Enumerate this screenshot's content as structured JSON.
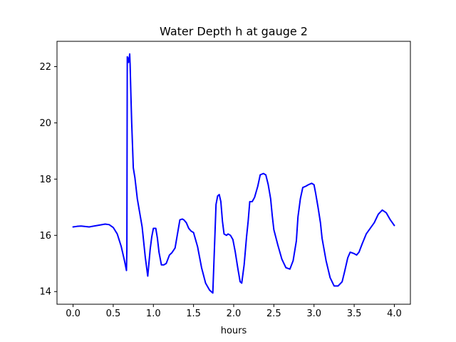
{
  "chart_data": {
    "type": "line",
    "title": "Water Depth h at gauge 2",
    "xlabel": "hours",
    "ylabel": "",
    "xlim": [
      -0.2,
      4.2
    ],
    "ylim": [
      13.55,
      22.9
    ],
    "x_ticks": [
      0.0,
      0.5,
      1.0,
      1.5,
      2.0,
      2.5,
      3.0,
      3.5,
      4.0
    ],
    "x_tick_labels": [
      "0.0",
      "0.5",
      "1.0",
      "1.5",
      "2.0",
      "2.5",
      "3.0",
      "3.5",
      "4.0"
    ],
    "y_ticks": [
      14,
      16,
      18,
      20,
      22
    ],
    "y_tick_labels": [
      "14",
      "16",
      "18",
      "20",
      "22"
    ],
    "grid": false,
    "series": [
      {
        "color": "#0000ff",
        "x": [
          0.0,
          0.05,
          0.1,
          0.2,
          0.3,
          0.4,
          0.45,
          0.5,
          0.55,
          0.6,
          0.64,
          0.665,
          0.67,
          0.675,
          0.685,
          0.69,
          0.7,
          0.705,
          0.71,
          0.72,
          0.73,
          0.75,
          0.77,
          0.8,
          0.83,
          0.86,
          0.9,
          0.93,
          0.96,
          0.98,
          1.0,
          1.03,
          1.05,
          1.07,
          1.1,
          1.13,
          1.16,
          1.2,
          1.23,
          1.27,
          1.3,
          1.33,
          1.36,
          1.38,
          1.41,
          1.44,
          1.47,
          1.5,
          1.55,
          1.6,
          1.65,
          1.7,
          1.74,
          1.78,
          1.8,
          1.82,
          1.84,
          1.86,
          1.88,
          1.91,
          1.93,
          1.96,
          1.99,
          2.02,
          2.05,
          2.08,
          2.1,
          2.13,
          2.16,
          2.18,
          2.2,
          2.23,
          2.26,
          2.3,
          2.33,
          2.37,
          2.4,
          2.43,
          2.46,
          2.48,
          2.5,
          2.55,
          2.6,
          2.65,
          2.7,
          2.74,
          2.78,
          2.8,
          2.83,
          2.86,
          2.9,
          2.93,
          2.97,
          3.0,
          3.02,
          3.05,
          3.08,
          3.1,
          3.15,
          3.2,
          3.25,
          3.3,
          3.35,
          3.38,
          3.42,
          3.45,
          3.5,
          3.53,
          3.56,
          3.6,
          3.65,
          3.7,
          3.75,
          3.8,
          3.85,
          3.9,
          3.95,
          4.0
        ],
        "y": [
          16.3,
          16.32,
          16.33,
          16.3,
          16.35,
          16.4,
          16.38,
          16.28,
          16.05,
          15.6,
          15.1,
          14.75,
          15.5,
          22.35,
          22.3,
          22.15,
          22.3,
          22.45,
          22.1,
          21.0,
          20.0,
          18.4,
          18.05,
          17.3,
          16.8,
          16.3,
          15.2,
          14.55,
          15.5,
          15.95,
          16.25,
          16.25,
          15.9,
          15.4,
          14.95,
          14.95,
          15.0,
          15.3,
          15.38,
          15.55,
          16.05,
          16.55,
          16.58,
          16.55,
          16.45,
          16.25,
          16.15,
          16.1,
          15.6,
          14.85,
          14.3,
          14.05,
          13.95,
          17.1,
          17.4,
          17.45,
          17.2,
          16.5,
          16.05,
          16.0,
          16.05,
          16.0,
          15.85,
          15.4,
          14.85,
          14.35,
          14.3,
          14.95,
          15.95,
          16.5,
          17.2,
          17.2,
          17.35,
          17.75,
          18.15,
          18.2,
          18.15,
          17.8,
          17.3,
          16.7,
          16.2,
          15.65,
          15.15,
          14.85,
          14.8,
          15.1,
          15.8,
          16.65,
          17.3,
          17.7,
          17.75,
          17.8,
          17.85,
          17.8,
          17.5,
          17.0,
          16.45,
          15.9,
          15.1,
          14.5,
          14.2,
          14.2,
          14.35,
          14.7,
          15.2,
          15.4,
          15.35,
          15.3,
          15.4,
          15.7,
          16.05,
          16.25,
          16.45,
          16.75,
          16.9,
          16.8,
          16.55,
          16.35
        ]
      }
    ]
  }
}
